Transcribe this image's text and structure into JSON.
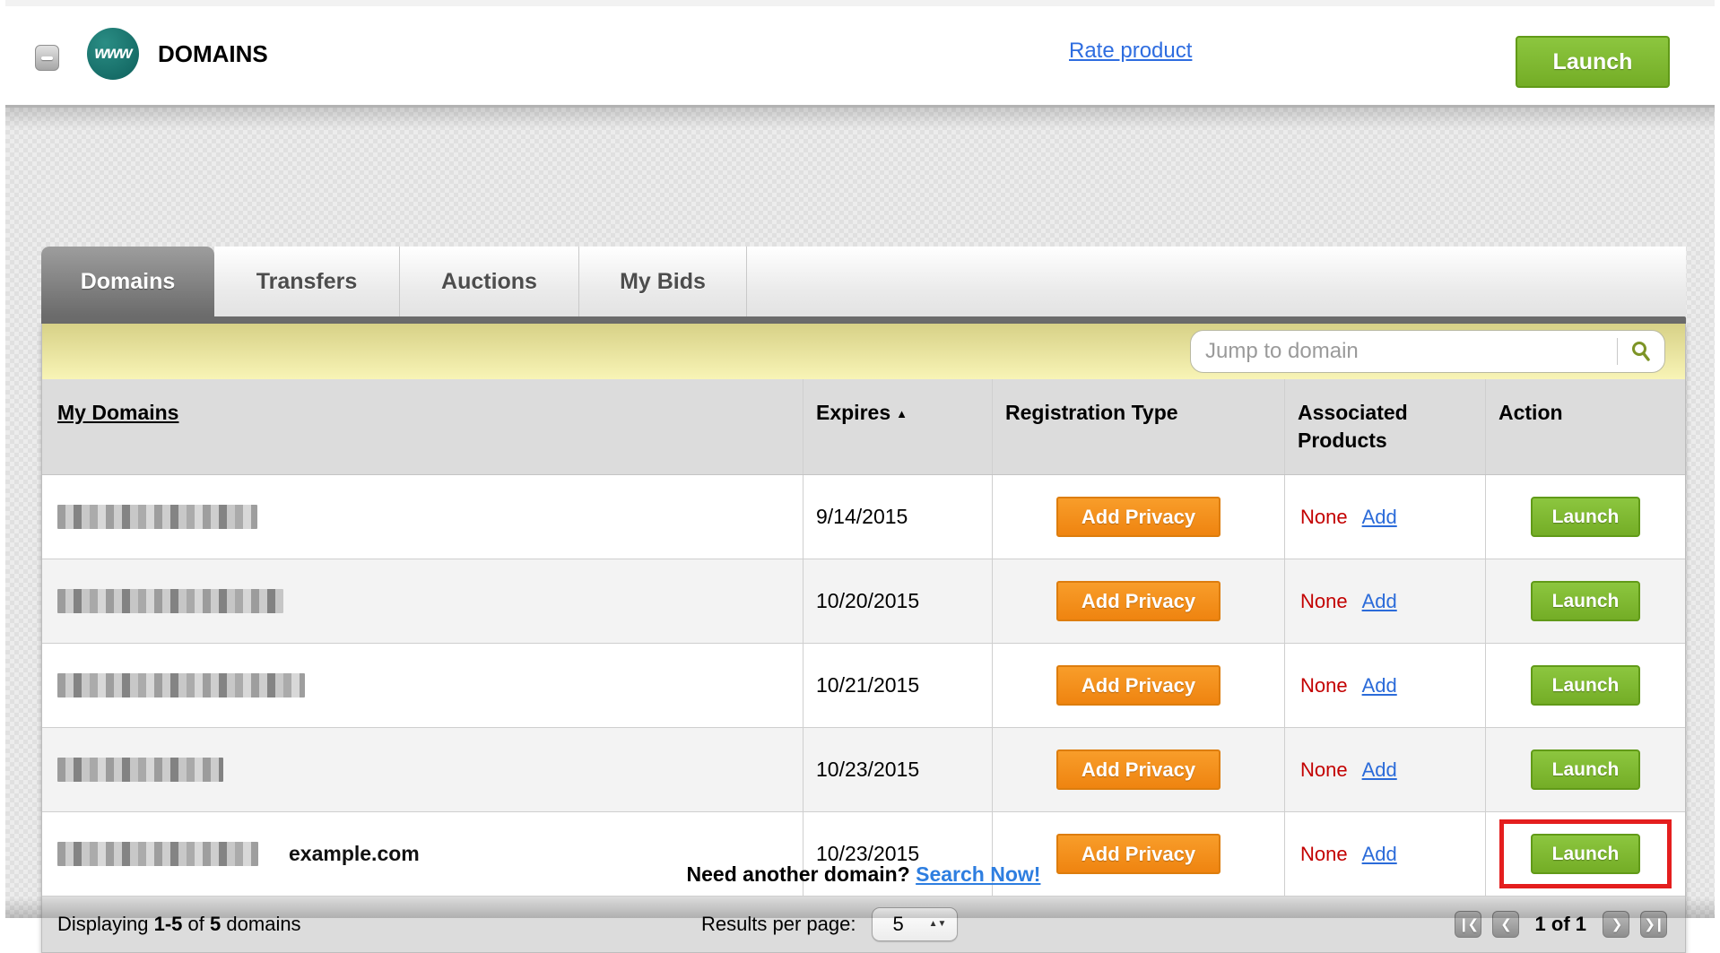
{
  "header": {
    "title": "DOMAINS",
    "icon_label": "www",
    "rate_link": "Rate product",
    "launch_button": "Launch"
  },
  "tabs": [
    {
      "label": "Domains",
      "active": true
    },
    {
      "label": "Transfers",
      "active": false
    },
    {
      "label": "Auctions",
      "active": false
    },
    {
      "label": "My Bids",
      "active": false
    }
  ],
  "search": {
    "placeholder": "Jump to domain"
  },
  "table": {
    "columns": [
      "My Domains",
      "Expires",
      "Registration Type",
      "Associated Products",
      "Action"
    ],
    "sort_column": "Expires",
    "sort_arrow": "▲",
    "rows": [
      {
        "domain_redacted": true,
        "annotation": "",
        "expires": "9/14/2015",
        "registration_button": "Add Privacy",
        "associated": "None",
        "associated_link": "Add",
        "action": "Launch",
        "highlighted": false
      },
      {
        "domain_redacted": true,
        "annotation": "",
        "expires": "10/20/2015",
        "registration_button": "Add Privacy",
        "associated": "None",
        "associated_link": "Add",
        "action": "Launch",
        "highlighted": false
      },
      {
        "domain_redacted": true,
        "annotation": "",
        "expires": "10/21/2015",
        "registration_button": "Add Privacy",
        "associated": "None",
        "associated_link": "Add",
        "action": "Launch",
        "highlighted": false
      },
      {
        "domain_redacted": true,
        "annotation": "",
        "expires": "10/23/2015",
        "registration_button": "Add Privacy",
        "associated": "None",
        "associated_link": "Add",
        "action": "Launch",
        "highlighted": false
      },
      {
        "domain_redacted": true,
        "annotation": "example.com",
        "expires": "10/23/2015",
        "registration_button": "Add Privacy",
        "associated": "None",
        "associated_link": "Add",
        "action": "Launch",
        "highlighted": true
      }
    ]
  },
  "footer": {
    "displaying_prefix": "Displaying",
    "range": "1-5",
    "of_word": "of",
    "total": "5",
    "suffix": "domains",
    "results_per_page_label": "Results per page:",
    "results_per_page_value": "5",
    "page_status": "1 of 1",
    "first_icon": "❙❮",
    "prev_icon": "❮",
    "next_icon": "❯",
    "last_icon": "❯❙"
  },
  "bottom": {
    "prompt": "Need another domain?",
    "link": "Search Now!"
  },
  "colors": {
    "accent_green": "#74ad26",
    "accent_orange": "#ef8410",
    "highlight_red": "#e41e1e",
    "link_blue": "#2b6bd9",
    "none_red": "#c30000",
    "yellow_bar": "#f0ecA4",
    "tab_dark": "#6b6b6b"
  }
}
